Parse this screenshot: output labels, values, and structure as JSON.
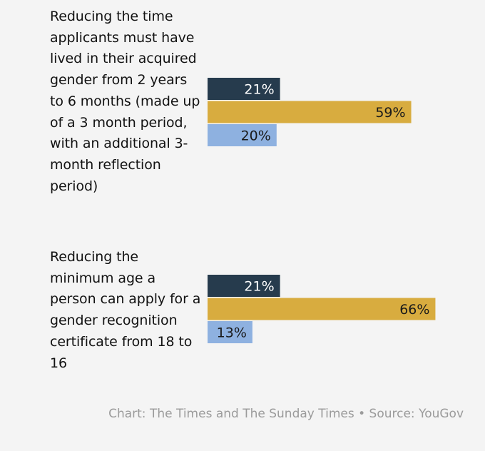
{
  "chart_data": {
    "type": "bar",
    "orientation": "horizontal",
    "categories": [
      "Reducing the time applicants must have lived in their acquired gender from 2 years to 6 months (made up of a 3 month period, with an additional 3-month reflection period)",
      "Reducing the minimum age a person can apply for a gender recognition certificate from 18 to 16"
    ],
    "series": [
      {
        "values": [
          21,
          21
        ],
        "color": "#263b4d",
        "label_color": "#ffffff"
      },
      {
        "values": [
          59,
          66
        ],
        "color": "#d8ac3f",
        "label_color": "#1a1a1a"
      },
      {
        "values": [
          20,
          13
        ],
        "color": "#8eb1e0",
        "label_color": "#1a1a1a"
      }
    ],
    "value_suffix": "%",
    "grid": false,
    "legend": "none"
  },
  "footer": {
    "source": "Chart: The Times and The Sunday Times • Source: YouGov"
  }
}
